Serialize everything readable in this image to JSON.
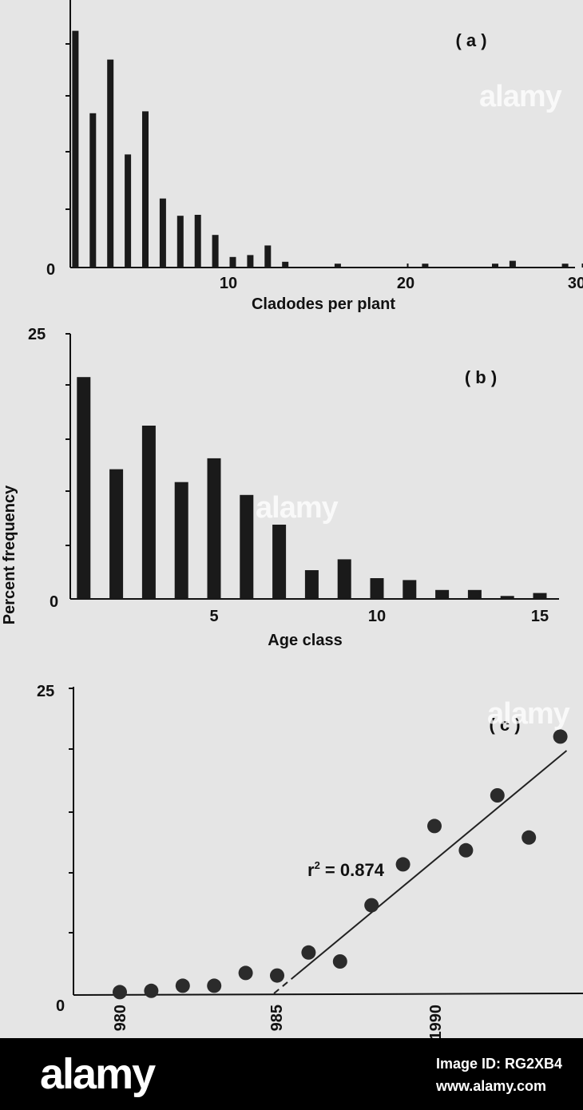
{
  "chart_data": [
    {
      "type": "bar",
      "panel_label": "( a )",
      "xlabel": "Cladodes per plant",
      "ylabel": "",
      "x_tick_labels": [
        "10",
        "20",
        "30"
      ],
      "y_tick_labels": [
        "0"
      ],
      "xlim": [
        0,
        30
      ],
      "ylim": [
        0,
        25
      ],
      "grid": false,
      "x": [
        1,
        2,
        3,
        4,
        5,
        6,
        7,
        8,
        9,
        10,
        11,
        12,
        13,
        14,
        15,
        16,
        17,
        18,
        19,
        20,
        21,
        22,
        23,
        24,
        25,
        26,
        27,
        28,
        29
      ],
      "values": [
        24.7,
        16.1,
        21.7,
        11.8,
        16.3,
        7.2,
        5.4,
        5.5,
        3.4,
        1.1,
        1.3,
        2.3,
        0.6,
        0.0,
        0.0,
        0.4,
        0.0,
        0.0,
        0.0,
        0.0,
        0.4,
        0.0,
        0.0,
        0.0,
        0.4,
        0.7,
        0.0,
        0.0,
        0.4
      ]
    },
    {
      "type": "bar",
      "panel_label": "( b )",
      "xlabel": "Age class",
      "ylabel": "Percent frequency",
      "x_tick_labels": [
        "5",
        "10",
        "15"
      ],
      "y_tick_labels": [
        "25",
        "0"
      ],
      "xlim": [
        0,
        15.5
      ],
      "ylim": [
        0,
        25
      ],
      "grid": false,
      "x": [
        1,
        2,
        3,
        4,
        5,
        6,
        7,
        8,
        9,
        10,
        11,
        12,
        13,
        14,
        15
      ],
      "values": [
        22.4,
        13.1,
        17.5,
        11.8,
        14.2,
        10.5,
        7.5,
        2.9,
        4.0,
        2.1,
        1.9,
        0.9,
        0.9,
        0.3,
        0.6
      ]
    },
    {
      "type": "scatter",
      "panel_label": "( c )",
      "xlabel": "",
      "ylabel": "",
      "x_tick_labels": [
        "980",
        "985",
        "1990"
      ],
      "y_tick_labels": [
        "25",
        "0"
      ],
      "xlim": [
        1980,
        1994.2
      ],
      "ylim": [
        0,
        25
      ],
      "grid": false,
      "annotation": "r² = 0.874",
      "annotation_parts": [
        "r",
        "2",
        " = 0.874"
      ],
      "points": [
        {
          "x": 1980,
          "y": 0.1
        },
        {
          "x": 1981,
          "y": 0.2
        },
        {
          "x": 1982,
          "y": 0.6
        },
        {
          "x": 1983,
          "y": 0.6
        },
        {
          "x": 1984,
          "y": 1.6
        },
        {
          "x": 1985,
          "y": 1.4
        },
        {
          "x": 1986,
          "y": 3.2
        },
        {
          "x": 1987,
          "y": 2.5
        },
        {
          "x": 1988,
          "y": 6.9
        },
        {
          "x": 1989,
          "y": 10.1
        },
        {
          "x": 1990,
          "y": 13.1
        },
        {
          "x": 1991,
          "y": 11.2
        },
        {
          "x": 1992,
          "y": 15.5
        },
        {
          "x": 1993,
          "y": 12.2
        },
        {
          "x": 1994,
          "y": 20.1
        }
      ],
      "regression": {
        "x_start": 1984.9,
        "y_start": 0.0,
        "x_end": 1994.2,
        "y_end": 19.0,
        "dashed_until_x": 1985.6
      }
    }
  ],
  "watermarks": [
    "alamy",
    "alamy",
    "alamy"
  ],
  "footer": {
    "logo": "alamy",
    "image_id": "Image ID: RG2XB4",
    "url": "www.alamy.com"
  }
}
